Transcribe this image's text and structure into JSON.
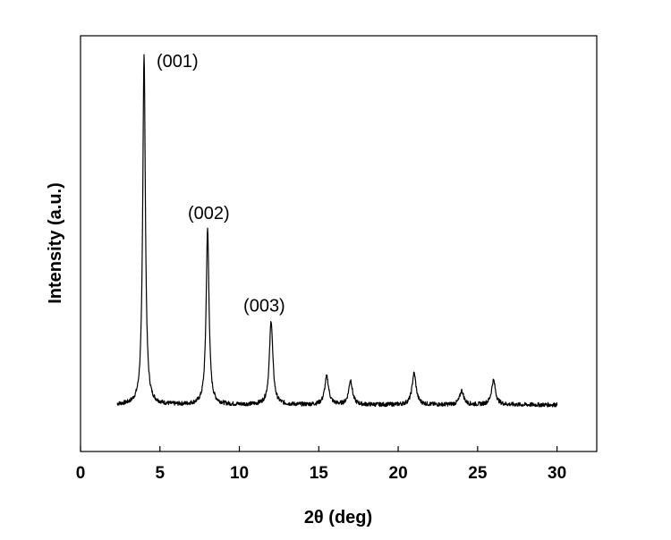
{
  "chart_data": {
    "type": "line",
    "title": "",
    "xlabel": "2θ (deg)",
    "ylabel": "Intensity (a.u.)",
    "xlim": [
      0,
      32.5
    ],
    "ylim": [
      0,
      1
    ],
    "x_ticks": [
      0,
      5,
      10,
      15,
      20,
      25,
      30
    ],
    "y_ticks_shown": false,
    "grid": false,
    "legend": "none",
    "baseline_intensity": 0.1,
    "x_range": [
      2.3,
      30
    ],
    "peaks": [
      {
        "x": 4.0,
        "height": 1.0,
        "width": 0.1
      },
      {
        "x": 8.0,
        "height": 0.5,
        "width": 0.11
      },
      {
        "x": 12.0,
        "height": 0.24,
        "width": 0.13
      },
      {
        "x": 15.5,
        "height": 0.08,
        "width": 0.15
      },
      {
        "x": 17.0,
        "height": 0.07,
        "width": 0.14
      },
      {
        "x": 21.0,
        "height": 0.09,
        "width": 0.15
      },
      {
        "x": 24.0,
        "height": 0.04,
        "width": 0.15
      },
      {
        "x": 26.0,
        "height": 0.07,
        "width": 0.15
      }
    ],
    "annotations": [
      {
        "text": "(001)",
        "x": 4.0,
        "y": 1.0
      },
      {
        "text": "(002)",
        "x": 8.0,
        "y": 0.5
      },
      {
        "text": "(003)",
        "x": 12.0,
        "y": 0.24
      }
    ],
    "series_color": "#000000"
  }
}
